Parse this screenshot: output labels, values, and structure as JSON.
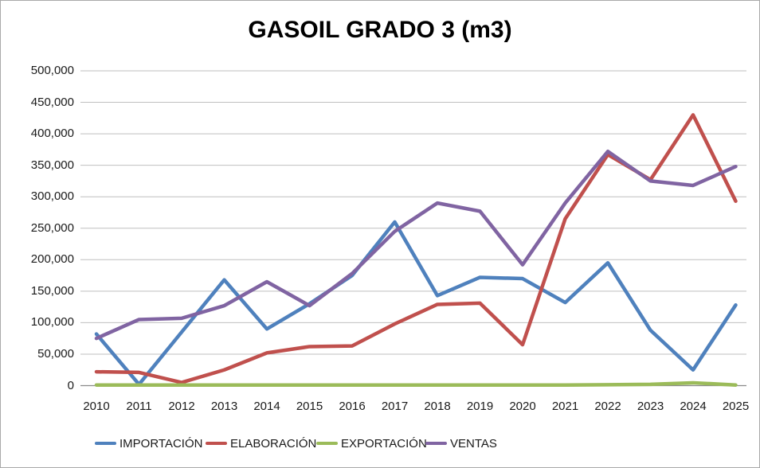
{
  "window": {
    "background": "#ffffff",
    "border_color": "#a9a9a9"
  },
  "chart_data": {
    "type": "line",
    "title": "GASOIL GRADO 3 (m3)",
    "xlabel": "",
    "ylabel": "",
    "x": [
      "2010",
      "2011",
      "2012",
      "2013",
      "2014",
      "2015",
      "2016",
      "2017",
      "2018",
      "2019",
      "2020",
      "2021",
      "2022",
      "2023",
      "2024",
      "2025"
    ],
    "ylim": [
      0,
      500000
    ],
    "y_ticks": [
      0,
      50000,
      100000,
      150000,
      200000,
      250000,
      300000,
      350000,
      400000,
      450000,
      500000
    ],
    "grid": "horizontal",
    "gridline_color": "#bfbfbf",
    "axis_color": "#898989",
    "legend_position": "bottom",
    "series": [
      {
        "name": "IMPORTACIÓN",
        "color": "#4F81BD",
        "values": [
          82000,
          2000,
          85000,
          168000,
          90000,
          130000,
          175000,
          260000,
          143000,
          172000,
          170000,
          132000,
          195000,
          88000,
          25000,
          128000
        ]
      },
      {
        "name": "ELABORACIÓN",
        "color": "#C0504D",
        "values": [
          22000,
          21000,
          5000,
          25000,
          52000,
          62000,
          63000,
          98000,
          129000,
          131000,
          65000,
          265000,
          367000,
          327000,
          430000,
          293000
        ]
      },
      {
        "name": "EXPORTACIÓN",
        "color": "#9BBB59",
        "values": [
          1000,
          1000,
          1000,
          1000,
          1000,
          1000,
          1000,
          1000,
          1000,
          1000,
          1000,
          1000,
          1500,
          2000,
          4500,
          1000
        ]
      },
      {
        "name": "VENTAS",
        "color": "#8064A2",
        "values": [
          75000,
          105000,
          107000,
          127000,
          165000,
          127000,
          178000,
          245000,
          290000,
          277000,
          192000,
          290000,
          372000,
          325000,
          318000,
          348000
        ]
      }
    ]
  }
}
